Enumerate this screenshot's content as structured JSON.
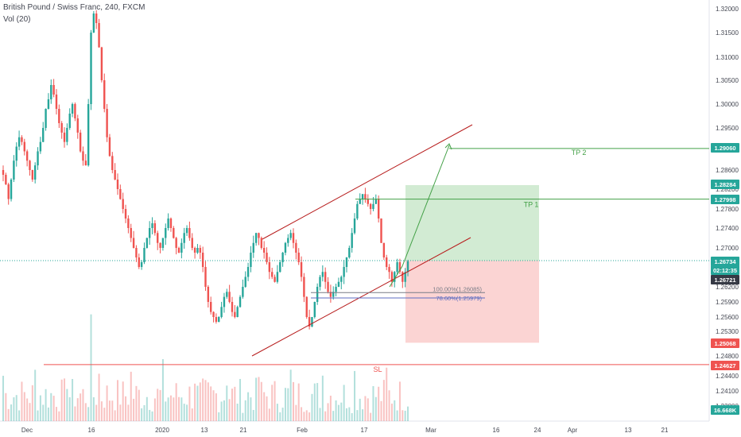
{
  "header": {
    "title": "British Pound / Swiss Franc, 240, FXCM",
    "volume_indicator": "Vol (20)"
  },
  "chart_data": {
    "type": "candlestick",
    "symbol": "GBPCHF",
    "price_axis": {
      "ticks": [
        "1.32000",
        "1.31500",
        "1.31000",
        "1.30500",
        "1.30000",
        "1.29500",
        "1.28600",
        "1.28200",
        "1.27800",
        "1.27400",
        "1.27000",
        "1.26600",
        "1.26200",
        "1.25900",
        "1.25600",
        "1.25300",
        "1.24800",
        "1.24400",
        "1.24100",
        "1.23800"
      ],
      "ylim": [
        1.2345,
        1.3222
      ]
    },
    "time_axis": {
      "ticks": [
        "Dec",
        "16",
        "2020",
        "13",
        "21",
        "Feb",
        "17",
        "Mar",
        "16",
        "24",
        "Apr",
        "13",
        "21"
      ]
    },
    "price_labels": [
      {
        "text": "1.29060",
        "color": "#26a69a"
      },
      {
        "text": "1.28284",
        "color": "#26a69a"
      },
      {
        "text": "1.27998",
        "color": "#26a69a"
      },
      {
        "text": "1.26734",
        "color": "#26a69a"
      },
      {
        "text": "02:12:35",
        "color": "#26a69a"
      },
      {
        "text": "1.26721",
        "color": "#363a45"
      },
      {
        "text": "1.25068",
        "color": "#ef5350"
      },
      {
        "text": "1.24627",
        "color": "#ef5350"
      },
      {
        "text": "16.668K",
        "color": "#26a69a"
      }
    ],
    "annotations": {
      "tp2": {
        "label": "TP 2",
        "price": 1.2906
      },
      "tp1": {
        "label": "TP 1",
        "price": 1.27998
      },
      "sl": {
        "label": "SL",
        "price": 1.24627
      },
      "fib_100": {
        "label": "100.00%(1.26085)",
        "price": 1.26085
      },
      "fib_786": {
        "label": "78.60%(1.25979)",
        "price": 1.25979
      },
      "position": {
        "entry": 1.26734,
        "target": 1.28284,
        "stop": 1.25068
      },
      "current_price": 1.26734
    },
    "candles_close": [
      1.285,
      1.283,
      1.28,
      1.284,
      1.288,
      1.291,
      1.293,
      1.292,
      1.29,
      1.288,
      1.286,
      1.284,
      1.287,
      1.29,
      1.292,
      1.295,
      1.299,
      1.301,
      1.304,
      1.302,
      1.299,
      1.296,
      1.294,
      1.292,
      1.295,
      1.298,
      1.3,
      1.297,
      1.294,
      1.29,
      1.288,
      1.287,
      1.3,
      1.315,
      1.319,
      1.317,
      1.312,
      1.305,
      1.299,
      1.293,
      1.289,
      1.286,
      1.284,
      1.282,
      1.28,
      1.278,
      1.276,
      1.274,
      1.272,
      1.27,
      1.268,
      1.266,
      1.267,
      1.27,
      1.272,
      1.274,
      1.275,
      1.273,
      1.271,
      1.27,
      1.272,
      1.274,
      1.276,
      1.274,
      1.272,
      1.27,
      1.269,
      1.271,
      1.273,
      1.274,
      1.272,
      1.27,
      1.269,
      1.27,
      1.269,
      1.266,
      1.262,
      1.259,
      1.257,
      1.256,
      1.255,
      1.256,
      1.258,
      1.26,
      1.261,
      1.259,
      1.257,
      1.256,
      1.258,
      1.26,
      1.262,
      1.264,
      1.266,
      1.269,
      1.271,
      1.273,
      1.272,
      1.27,
      1.269,
      1.267,
      1.265,
      1.264,
      1.263,
      1.265,
      1.267,
      1.269,
      1.271,
      1.272,
      1.273,
      1.271,
      1.269,
      1.267,
      1.264,
      1.26,
      1.256,
      1.254,
      1.256,
      1.259,
      1.262,
      1.264,
      1.265,
      1.263,
      1.261,
      1.26,
      1.261,
      1.262,
      1.263,
      1.264,
      1.266,
      1.268,
      1.27,
      1.273,
      1.276,
      1.279,
      1.28,
      1.281,
      1.28,
      1.279,
      1.278,
      1.279,
      1.28,
      1.276,
      1.271,
      1.268,
      1.266,
      1.265,
      1.263,
      1.265,
      1.267,
      1.265,
      1.263,
      1.265,
      1.2672
    ]
  }
}
